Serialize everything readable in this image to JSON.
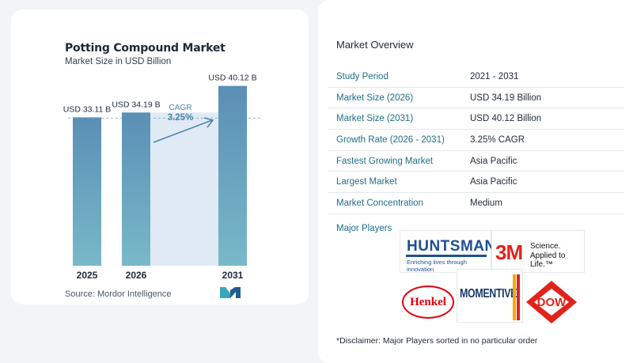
{
  "chart_data": {
    "type": "bar",
    "title": "Potting Compound Market",
    "subtitle": "Market Size in USD Billion",
    "categories": [
      "2025",
      "2026",
      "2031"
    ],
    "values": [
      33.11,
      34.19,
      40.12
    ],
    "data_labels": [
      "USD 33.11 B",
      "USD 34.19 B",
      "USD 40.12 B"
    ],
    "xlabel": "",
    "ylabel": "",
    "ylim": [
      0,
      42
    ],
    "grid": false,
    "annotation": {
      "label": "CAGR",
      "value": "3.25%"
    },
    "colors": {
      "bar": "#5b8fb5",
      "bar_bottom": "#78b9c9",
      "gap_fill": "#dfeaf5",
      "reference_line": "#9ab4c8"
    }
  },
  "source": "Source:  Mordor Intelligence",
  "overview": {
    "title": "Market Overview",
    "rows": [
      {
        "label": "Study Period",
        "value": "2021 - 2031"
      },
      {
        "label": "Market Size (2026)",
        "value": "USD 34.19 Billion"
      },
      {
        "label": "Market Size (2031)",
        "value": "USD 40.12 Billion"
      },
      {
        "label": "Growth Rate (2026 - 2031)",
        "value": "3.25% CAGR"
      },
      {
        "label": "Fastest Growing Market",
        "value": "Asia Pacific"
      },
      {
        "label": "Largest Market",
        "value": "Asia Pacific"
      },
      {
        "label": "Market Concentration",
        "value": "Medium"
      }
    ]
  },
  "players": {
    "title": "Major Players",
    "huntsman": {
      "name": "HUNTSMAN",
      "tagline": "Enriching lives through innovation"
    },
    "threem": {
      "mark": "3M",
      "line1": "Science.",
      "line2": "Applied to Life.™"
    },
    "henkel": {
      "name": "Henkel"
    },
    "momentive": {
      "name": "MOMENTIVE"
    },
    "dow": {
      "name": "DOW"
    }
  },
  "disclaimer": "*Disclaimer: Major Players sorted in no particular order"
}
